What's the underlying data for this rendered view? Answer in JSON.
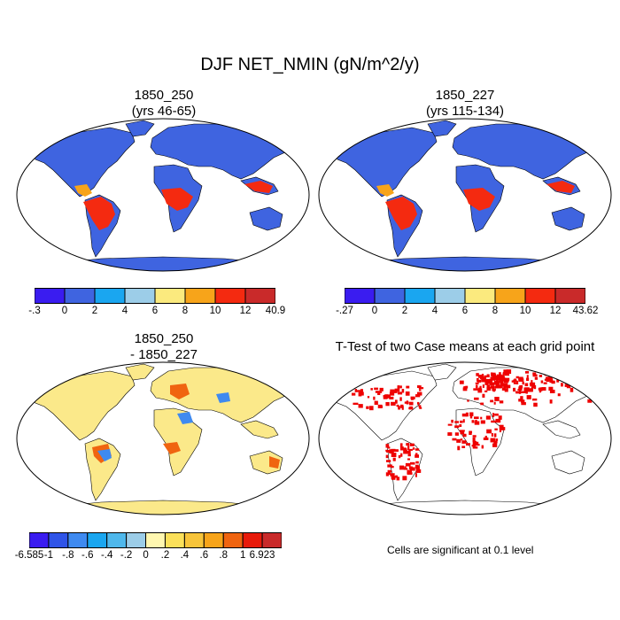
{
  "figure": {
    "title": "DJF NET_NMIN (gN/m^2/y)"
  },
  "panels": [
    {
      "title_line1": "1850_250",
      "title_line2": "(yrs 46-65)"
    },
    {
      "title_line1": "1850_227",
      "title_line2": "(yrs 115-134)"
    },
    {
      "title_line1": "1850_250",
      "title_line2": "- 1850_227"
    },
    {
      "title_line1": "T-Test of two Case means at each grid point",
      "title_line2": ""
    }
  ],
  "colorbars": [
    {
      "labels": [
        "-.3",
        "0",
        "2",
        "4",
        "6",
        "8",
        "10",
        "12",
        "40.9"
      ],
      "colors": [
        "#3a1cf0",
        "#3f64e0",
        "#1aa6f0",
        "#9ccde8",
        "#fbea7e",
        "#f7a41a",
        "#f42a10",
        "#c92a2a"
      ]
    },
    {
      "labels": [
        "-.27",
        "0",
        "2",
        "4",
        "6",
        "8",
        "10",
        "12",
        "43.62"
      ],
      "colors": [
        "#3a1cf0",
        "#3f64e0",
        "#1aa6f0",
        "#9ccde8",
        "#fbea7e",
        "#f7a41a",
        "#f42a10",
        "#c92a2a"
      ]
    },
    {
      "labels": [
        "-6.585",
        "-1",
        "-.8",
        "-.6",
        "-.4",
        "-.2",
        "0",
        ".2",
        ".4",
        ".6",
        ".8",
        "1",
        "6.923"
      ],
      "colors": [
        "#3a1cf0",
        "#2f54e8",
        "#3f8af0",
        "#1aa6f0",
        "#4fb8ec",
        "#9ccde8",
        "#fff7b0",
        "#fbe05a",
        "#f7c43a",
        "#f7a41a",
        "#f06410",
        "#e81a0a",
        "#c92a2a"
      ]
    }
  ],
  "significance_note": "Cells are significant at 0.1 level",
  "colors": {
    "land_base_absolute": "#3f64e0",
    "land_base_difference": "#fbe98a",
    "significant": "#ee0000",
    "coastline": "#000000"
  }
}
